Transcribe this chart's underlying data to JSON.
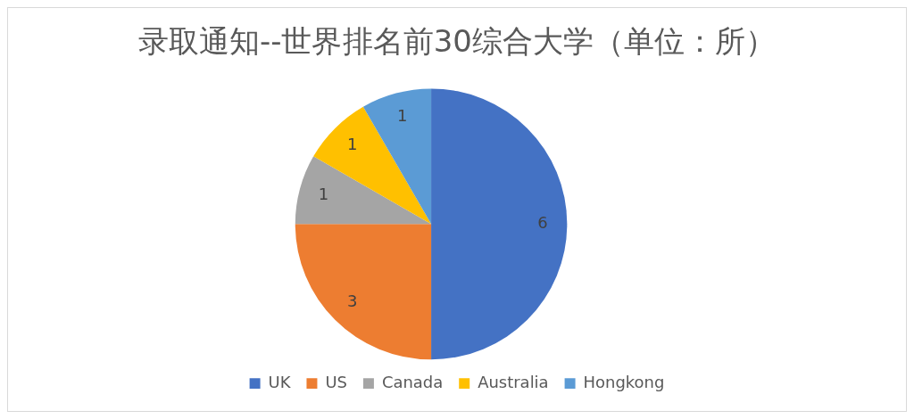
{
  "chart_data": {
    "type": "pie",
    "title": "录取通知--世界排名前30综合大学（单位：所）",
    "categories": [
      "UK",
      "US",
      "Canada",
      "Australia",
      "Hongkong"
    ],
    "values": [
      6,
      3,
      1,
      1,
      1
    ],
    "colors": [
      "#4472c4",
      "#ed7d31",
      "#a5a5a5",
      "#ffc000",
      "#5b9bd5"
    ],
    "data_labels": true,
    "legend": "bottom"
  }
}
